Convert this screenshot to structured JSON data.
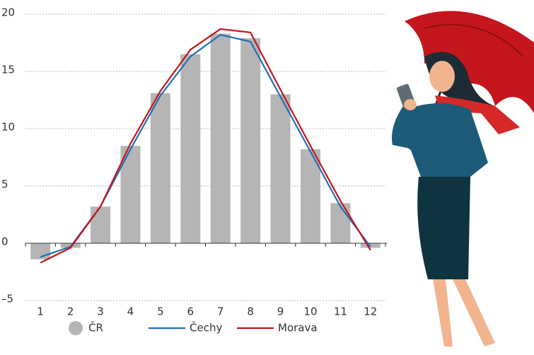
{
  "chart_data": {
    "type": "bar",
    "categories": [
      "1",
      "2",
      "3",
      "4",
      "5",
      "6",
      "7",
      "8",
      "9",
      "10",
      "11",
      "12"
    ],
    "series": [
      {
        "name": "ČR",
        "type": "bar",
        "color": "#b5b5b5",
        "values": [
          -1.4,
          -0.4,
          3.2,
          8.5,
          13.1,
          16.5,
          18.3,
          17.9,
          13.0,
          8.2,
          3.5,
          -0.4
        ]
      },
      {
        "name": "Čechy",
        "type": "line",
        "color": "#1f6fb5",
        "values": [
          -1.2,
          -0.3,
          3.2,
          8.2,
          12.9,
          16.3,
          18.2,
          17.6,
          12.8,
          8.0,
          3.2,
          -0.3
        ]
      },
      {
        "name": "Morava",
        "type": "line",
        "color": "#c4161c",
        "values": [
          -1.7,
          -0.4,
          3.2,
          8.7,
          13.3,
          16.9,
          18.7,
          18.4,
          13.4,
          8.5,
          3.7,
          -0.6
        ]
      }
    ],
    "ylim": [
      -5,
      20
    ],
    "yticks": [
      {
        "value": -5,
        "label": "–5"
      },
      0,
      5,
      10,
      15,
      20
    ],
    "grid": true
  }
}
